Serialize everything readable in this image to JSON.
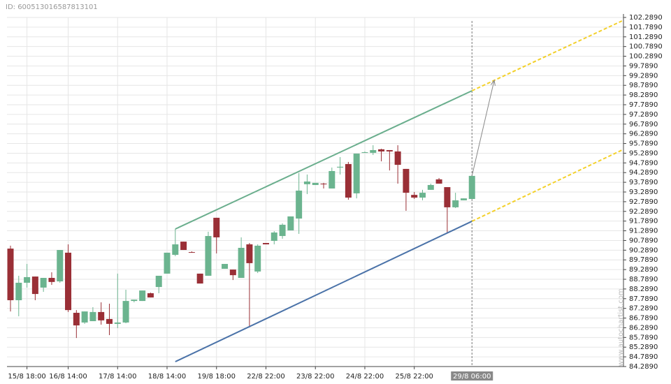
{
  "id_label": "ID: 600513016587813101",
  "watermark": "www.autochartist.com",
  "chart_data": {
    "type": "candlestick",
    "categories": [
      null,
      null,
      "15/8 18:00",
      null,
      null,
      null,
      null,
      "16/8 14:00",
      null,
      null,
      null,
      null,
      null,
      "17/8 14:00",
      null,
      null,
      null,
      null,
      null,
      "18/8 14:00",
      null,
      null,
      null,
      null,
      null,
      "19/8 18:00",
      null,
      null,
      null,
      null,
      null,
      "22/8 22:00",
      null,
      null,
      null,
      null,
      null,
      "23/8 22:00",
      null,
      null,
      null,
      null,
      null,
      "24/8 22:00",
      null,
      null,
      null,
      null,
      null,
      "25/8 22:00",
      null,
      null,
      null,
      null,
      null,
      null,
      "29/8 06:00"
    ],
    "open": [
      90.37,
      87.71,
      88.61,
      88.93,
      88.36,
      88.86,
      88.68,
      90.16,
      87.06,
      86.56,
      86.63,
      87.1,
      86.74,
      86.49,
      86.56,
      87.67,
      87.67,
      88.07,
      88.39,
      89.08,
      90.05,
      90.73,
      90.19,
      89.08,
      88.97,
      91.96,
      89.33,
      89.29,
      88.86,
      90.59,
      89.19,
      90.66,
      90.77,
      91.02,
      91.31,
      91.92,
      93.69,
      93.65,
      93.72,
      93.47,
      94.55,
      94.73,
      93.22,
      95.31,
      95.31,
      95.49,
      95.45,
      95.38,
      94.48,
      93.14,
      93.0,
      93.4,
      93.94,
      93.54,
      92.5,
      92.86,
      92.93
    ],
    "high": [
      90.52,
      88.97,
      89.58,
      88.93,
      88.86,
      89.15,
      90.3,
      90.59,
      87.2,
      87.13,
      87.35,
      87.6,
      87.53,
      89.08,
      88.25,
      87.74,
      88.21,
      88.1,
      88.97,
      90.16,
      91.38,
      90.73,
      90.23,
      89.08,
      91.24,
      91.96,
      89.58,
      89.29,
      90.95,
      90.66,
      90.59,
      90.66,
      91.27,
      91.67,
      92.03,
      94.26,
      94.19,
      93.76,
      93.76,
      94.55,
      95.09,
      94.84,
      95.27,
      95.38,
      95.7,
      95.52,
      95.45,
      95.7,
      94.48,
      93.29,
      93.4,
      93.72,
      94.01,
      93.54,
      93.25,
      92.96,
      94.12
    ],
    "low": [
      87.13,
      86.88,
      88.36,
      87.71,
      88.14,
      88.5,
      88.61,
      87.1,
      85.76,
      86.49,
      86.63,
      86.45,
      85.91,
      86.27,
      86.52,
      87.6,
      87.67,
      87.85,
      88.07,
      89.08,
      89.98,
      90.3,
      90.16,
      88.57,
      88.97,
      90.12,
      89.33,
      88.75,
      88.86,
      86.34,
      89.11,
      90.59,
      90.59,
      90.88,
      91.31,
      91.13,
      93.18,
      93.65,
      93.47,
      93.47,
      94.19,
      92.89,
      92.96,
      95.31,
      95.2,
      94.87,
      94.4,
      93.72,
      92.32,
      92.93,
      92.86,
      93.4,
      93.72,
      91.2,
      92.46,
      92.86,
      92.93
    ],
    "close": [
      87.71,
      88.61,
      88.9,
      88.03,
      88.86,
      88.65,
      90.3,
      87.2,
      86.41,
      87.13,
      87.1,
      86.67,
      86.49,
      86.56,
      87.67,
      87.74,
      88.21,
      87.85,
      88.97,
      90.16,
      90.59,
      90.3,
      90.16,
      88.57,
      91.02,
      90.95,
      89.58,
      89.0,
      90.41,
      89.62,
      90.52,
      90.59,
      91.2,
      91.6,
      92.03,
      93.36,
      93.83,
      93.76,
      93.69,
      94.37,
      94.59,
      93.0,
      95.27,
      95.34,
      95.45,
      95.38,
      95.38,
      94.69,
      93.25,
      93.0,
      93.25,
      93.65,
      93.72,
      92.5,
      92.86,
      92.96,
      94.12
    ],
    "up_color": "#6bb48f",
    "down_color": "#9a2f36",
    "ylim": [
      84.289,
      102.289
    ],
    "yticks": [
      {
        "value": 84.289,
        "label": "84.2890"
      },
      {
        "value": 84.789,
        "label": "84.7890"
      },
      {
        "value": 85.289,
        "label": "85.2890"
      },
      {
        "value": 85.789,
        "label": "85.7890"
      },
      {
        "value": 86.289,
        "label": "86.2890"
      },
      {
        "value": 86.789,
        "label": "86.7890"
      },
      {
        "value": 87.289,
        "label": "87.2890"
      },
      {
        "value": 87.789,
        "label": "87.7890"
      },
      {
        "value": 88.289,
        "label": "88.2890"
      },
      {
        "value": 88.789,
        "label": "88.7890"
      },
      {
        "value": 89.289,
        "label": "89.2890"
      },
      {
        "value": 89.789,
        "label": "89.7890"
      },
      {
        "value": 90.289,
        "label": "90.2890"
      },
      {
        "value": 90.789,
        "label": "90.7890"
      },
      {
        "value": 91.289,
        "label": "91.2890"
      },
      {
        "value": 91.789,
        "label": "91.7890"
      },
      {
        "value": 92.289,
        "label": "92.2890"
      },
      {
        "value": 92.789,
        "label": "92.7890"
      },
      {
        "value": 93.289,
        "label": "93.2890"
      },
      {
        "value": 93.789,
        "label": "93.7890"
      },
      {
        "value": 94.289,
        "label": "94.2890"
      },
      {
        "value": 94.789,
        "label": "94.7890"
      },
      {
        "value": 95.289,
        "label": "95.2890"
      },
      {
        "value": 95.789,
        "label": "95.7890"
      },
      {
        "value": 96.289,
        "label": "96.2890"
      },
      {
        "value": 96.789,
        "label": "96.7890"
      },
      {
        "value": 97.289,
        "label": "97.2890"
      },
      {
        "value": 97.789,
        "label": "97.7890"
      },
      {
        "value": 98.289,
        "label": "98.2890"
      },
      {
        "value": 98.789,
        "label": "98.7890"
      },
      {
        "value": 99.289,
        "label": "99.2890"
      },
      {
        "value": 99.789,
        "label": "99.7890"
      },
      {
        "value": 100.289,
        "label": "100.2890"
      },
      {
        "value": 100.789,
        "label": "100.7890"
      },
      {
        "value": 101.289,
        "label": "101.2890"
      },
      {
        "value": 101.789,
        "label": "101.7890"
      },
      {
        "value": 102.289,
        "label": "102.2890"
      }
    ],
    "grid": true,
    "crosshair_x": 56,
    "lines": [
      {
        "color": "#6aae8d",
        "dash": false,
        "x": [
          20,
          56
        ],
        "values": [
          91.38,
          98.51
        ]
      },
      {
        "color": "#f3d02a",
        "dash": true,
        "x": [
          56,
          74.2
        ],
        "values": [
          98.51,
          102.11
        ]
      },
      {
        "color": "#4a72a8",
        "dash": false,
        "x": [
          20,
          56
        ],
        "values": [
          84.54,
          91.78
        ]
      },
      {
        "color": "#f3d02a",
        "dash": true,
        "x": [
          56,
          74.2
        ],
        "values": [
          91.78,
          95.45
        ]
      }
    ],
    "arrow": {
      "color": "#888888",
      "x": [
        56,
        58.7
      ],
      "values": [
        94.12,
        99.05
      ]
    }
  }
}
